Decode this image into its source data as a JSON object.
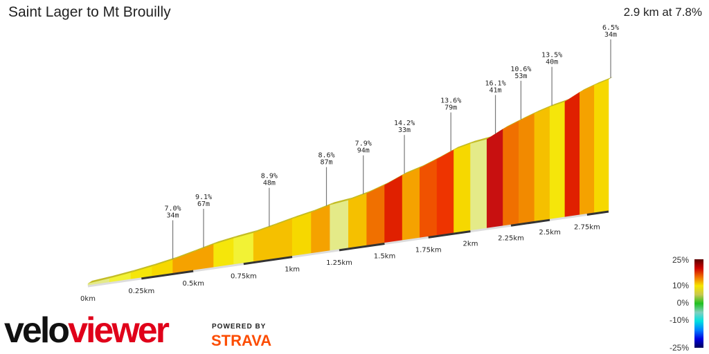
{
  "header": {
    "title": "Saint Lager to Mt Brouilly",
    "summary": "2.9 km at 7.8%"
  },
  "branding": {
    "logo_part1": "velo",
    "logo_part2": "viewer",
    "powered_by": "POWERED BY",
    "strava": "STRAVA",
    "strava_color": "#fc4c02"
  },
  "chart_data": {
    "type": "area",
    "title": "Saint Lager to Mt Brouilly",
    "x_unit": "km",
    "total_distance_km": 2.9,
    "x_tick_labels": [
      "0km",
      "0.25km",
      "0.5km",
      "0.75km",
      "1km",
      "1.25km",
      "1.5km",
      "1.75km",
      "2km",
      "2.25km",
      "2.5km",
      "2.75km"
    ],
    "x_ticks": [
      0,
      0.25,
      0.5,
      0.75,
      1,
      1.25,
      1.5,
      1.75,
      2,
      2.25,
      2.5,
      2.75
    ],
    "segments": {
      "segment_length_km": 0.1,
      "gradients_pct": [
        4,
        5,
        6,
        7,
        9,
        9,
        6,
        5,
        8,
        8,
        7,
        9,
        4,
        8,
        11,
        14,
        9,
        12,
        13,
        7,
        4,
        15,
        11,
        10,
        8,
        6,
        14,
        9,
        7
      ]
    },
    "annotations": [
      {
        "km": 0.39,
        "gradient": "7.0%",
        "length": "34m"
      },
      {
        "km": 0.54,
        "gradient": "9.1%",
        "length": "67m"
      },
      {
        "km": 0.87,
        "gradient": "8.9%",
        "length": "48m"
      },
      {
        "km": 1.17,
        "gradient": "8.6%",
        "length": "87m"
      },
      {
        "km": 1.37,
        "gradient": "7.9%",
        "length": "94m"
      },
      {
        "km": 1.6,
        "gradient": "14.2%",
        "length": "33m"
      },
      {
        "km": 1.87,
        "gradient": "13.6%",
        "length": "79m"
      },
      {
        "km": 2.14,
        "gradient": "16.1%",
        "length": "41m"
      },
      {
        "km": 2.3,
        "gradient": "10.6%",
        "length": "53m"
      },
      {
        "km": 2.5,
        "gradient": "13.5%",
        "length": "40m"
      },
      {
        "km": 2.9,
        "gradient": "6.5%",
        "length": "34m"
      }
    ],
    "colorbar": {
      "labels": [
        "25%",
        "10%",
        "0%",
        "-10%",
        "-25%"
      ],
      "values": [
        25,
        10,
        0,
        -10,
        -25
      ],
      "stops": [
        "#5a0000",
        "#cc0000",
        "#f07000",
        "#f5e600",
        "#c8c850",
        "#20c020",
        "#80d0c0",
        "#00e0e0",
        "#0080ff",
        "#0000e0",
        "#00005a"
      ]
    }
  }
}
